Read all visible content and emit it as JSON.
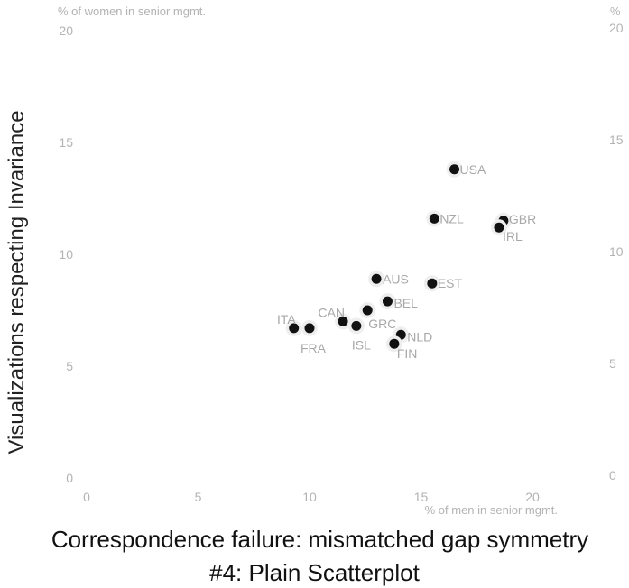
{
  "chart_data": {
    "type": "scatter",
    "x_axis_title": "% of men in senior mgmt.",
    "y_axis_title": "% of women in senior mgmt.",
    "y_axis_title_right": "%",
    "side_label": "Visualizations respecting Invariance",
    "xlim": [
      0,
      21
    ],
    "ylim": [
      0,
      20
    ],
    "x_ticks": [
      0,
      5,
      10,
      15,
      20
    ],
    "y_ticks": [
      0,
      5,
      10,
      15,
      20
    ],
    "grid": false,
    "points": [
      {
        "label": "USA",
        "x": 16.5,
        "y": 13.8
      },
      {
        "label": "NZL",
        "x": 15.6,
        "y": 11.6
      },
      {
        "label": "GBR",
        "x": 18.7,
        "y": 11.5
      },
      {
        "label": "IRL",
        "x": 18.5,
        "y": 11.2
      },
      {
        "label": "AUS",
        "x": 13.0,
        "y": 8.9
      },
      {
        "label": "EST",
        "x": 15.5,
        "y": 8.7
      },
      {
        "label": "BEL",
        "x": 13.5,
        "y": 7.9
      },
      {
        "label": "GRC",
        "x": 12.6,
        "y": 7.5
      },
      {
        "label": "CAN",
        "x": 11.5,
        "y": 7.0
      },
      {
        "label": "ISL",
        "x": 12.1,
        "y": 6.8
      },
      {
        "label": "ITA",
        "x": 9.3,
        "y": 6.7
      },
      {
        "label": "FRA",
        "x": 10.0,
        "y": 6.7
      },
      {
        "label": "NLD",
        "x": 14.1,
        "y": 6.4
      },
      {
        "label": "FIN",
        "x": 13.8,
        "y": 6.0
      }
    ]
  },
  "captions": {
    "line1": "Correspondence failure: mismatched gap symmetry",
    "line2": "#4: Plain Scatterplot"
  }
}
